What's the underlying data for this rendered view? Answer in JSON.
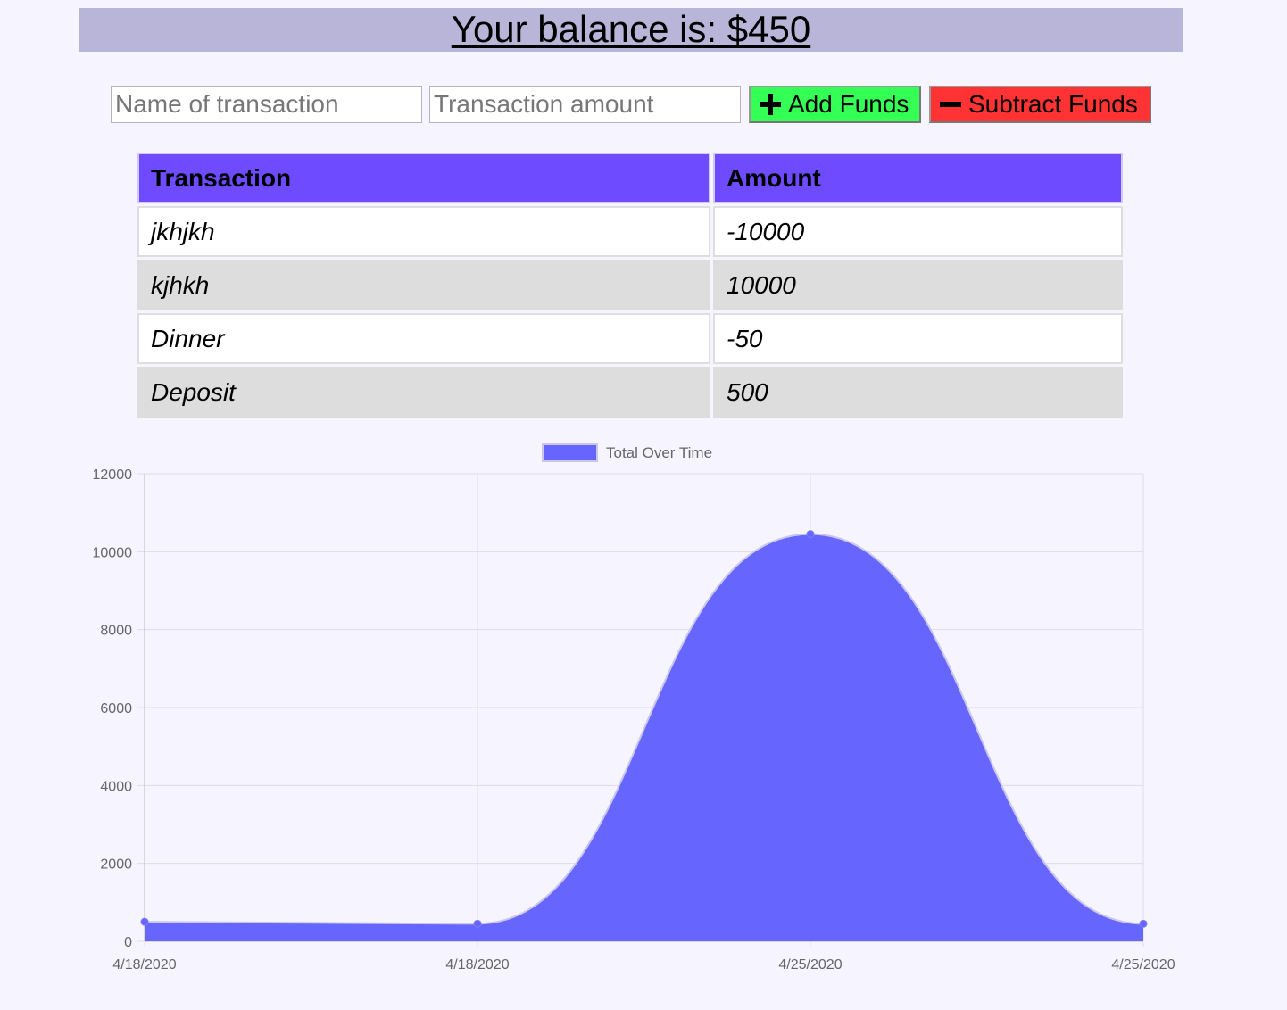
{
  "balance": {
    "text": "Your balance is: $450"
  },
  "form": {
    "name_placeholder": "Name of transaction",
    "amount_placeholder": "Transaction amount",
    "add_label": "Add Funds",
    "subtract_label": "Subtract Funds",
    "add_icon": "plus-icon",
    "subtract_icon": "minus-icon"
  },
  "table": {
    "headers": [
      "Transaction",
      "Amount"
    ],
    "rows": [
      {
        "name": "jkhjkh",
        "amount": "-10000"
      },
      {
        "name": "kjhkh",
        "amount": "10000"
      },
      {
        "name": "Dinner",
        "amount": "-50"
      },
      {
        "name": "Deposit",
        "amount": "500"
      }
    ]
  },
  "colors": {
    "header_bg": "#6e4bff",
    "chart_fill": "#6666ff",
    "add_btn": "#33ff55",
    "sub_btn": "#ff3333"
  },
  "chart_data": {
    "type": "area",
    "x": [
      "4/18/2020",
      "4/18/2020",
      "4/25/2020",
      "4/25/2020"
    ],
    "series": [
      {
        "name": "Total Over Time",
        "values": [
          500,
          450,
          10450,
          450
        ]
      }
    ],
    "ylim": [
      0,
      12000
    ],
    "yticks": [
      "0",
      "2000",
      "4000",
      "6000",
      "8000",
      "10000",
      "12000"
    ],
    "legend": "top",
    "grid": true
  }
}
